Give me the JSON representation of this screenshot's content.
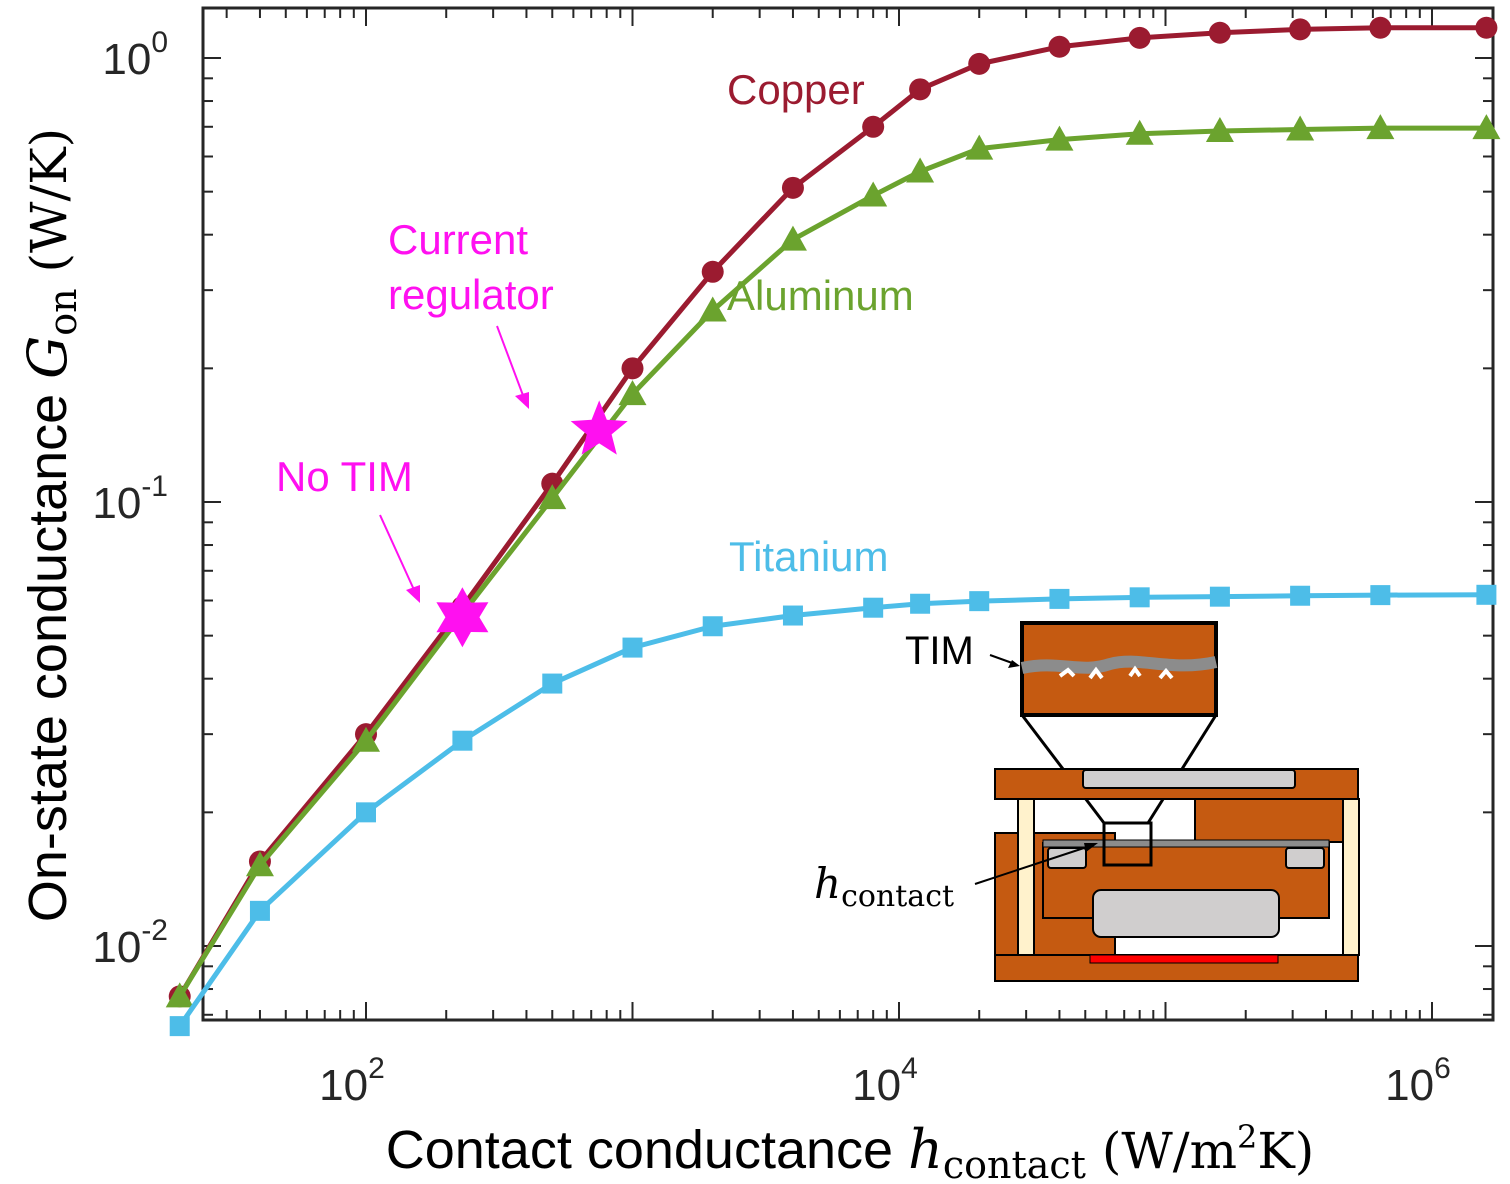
{
  "chart_data": {
    "type": "line",
    "xscale": "log",
    "yscale": "log",
    "xlim": [
      20,
      1600000
    ],
    "ylim": [
      0.007,
      1.35
    ],
    "x_ticks": [
      {
        "value": 100,
        "base": "10",
        "exp": "2"
      },
      {
        "value": 10000,
        "base": "10",
        "exp": "4"
      },
      {
        "value": 1000000,
        "base": "10",
        "exp": "6"
      }
    ],
    "y_ticks": [
      {
        "value": 0.01,
        "base": "10",
        "exp": "-2"
      },
      {
        "value": 0.1,
        "base": "10",
        "exp": "-1"
      },
      {
        "value": 1,
        "base": "10",
        "exp": "0"
      }
    ],
    "xlabel": {
      "prefix": "Contact conductance ",
      "sym": "h",
      "sub": "contact",
      "units_pre": " (W/m",
      "units_sup": "2",
      "units_post": "K)"
    },
    "ylabel": {
      "prefix": "On-state conductance ",
      "sym": "G",
      "sub": "on",
      "units": " (W/K)"
    },
    "series": [
      {
        "name": "Copper",
        "color": "#9b1b30",
        "marker": "circle",
        "x": [
          20,
          40,
          100,
          230,
          500,
          1000,
          2000,
          4000,
          8000,
          12000,
          20000,
          40000,
          80000,
          160000,
          320000,
          640000,
          1600000
        ],
        "y": [
          0.0077,
          0.0155,
          0.03,
          0.058,
          0.11,
          0.2,
          0.33,
          0.51,
          0.7,
          0.85,
          0.97,
          1.06,
          1.11,
          1.14,
          1.16,
          1.17,
          1.17
        ]
      },
      {
        "name": "Aluminum",
        "color": "#6ba32e",
        "marker": "triangle",
        "x": [
          20,
          40,
          100,
          230,
          500,
          1000,
          2000,
          4000,
          8000,
          12000,
          20000,
          40000,
          80000,
          160000,
          320000,
          640000,
          1600000
        ],
        "y": [
          0.0077,
          0.0152,
          0.029,
          0.056,
          0.102,
          0.175,
          0.27,
          0.39,
          0.49,
          0.555,
          0.625,
          0.655,
          0.675,
          0.685,
          0.69,
          0.695,
          0.695
        ]
      },
      {
        "name": "Titanium",
        "color": "#4dbde8",
        "marker": "square",
        "x": [
          20,
          40,
          100,
          230,
          500,
          1000,
          2000,
          4000,
          8000,
          12000,
          20000,
          40000,
          80000,
          160000,
          320000,
          640000,
          1600000
        ],
        "y": [
          0.0066,
          0.012,
          0.02,
          0.029,
          0.039,
          0.047,
          0.0525,
          0.0555,
          0.0578,
          0.059,
          0.0598,
          0.0605,
          0.061,
          0.0612,
          0.0615,
          0.0617,
          0.0618
        ]
      }
    ],
    "highlights": [
      {
        "label": "No TIM",
        "x": 230,
        "y": 0.055,
        "color": "#ff10f0"
      },
      {
        "label_lines": [
          "Current",
          "regulator"
        ],
        "x": 750,
        "y": 0.145,
        "color": "#ff10f0"
      }
    ],
    "inset": {
      "tim_label": "TIM",
      "contact_label": {
        "sym": "h",
        "sub": "contact"
      }
    }
  }
}
